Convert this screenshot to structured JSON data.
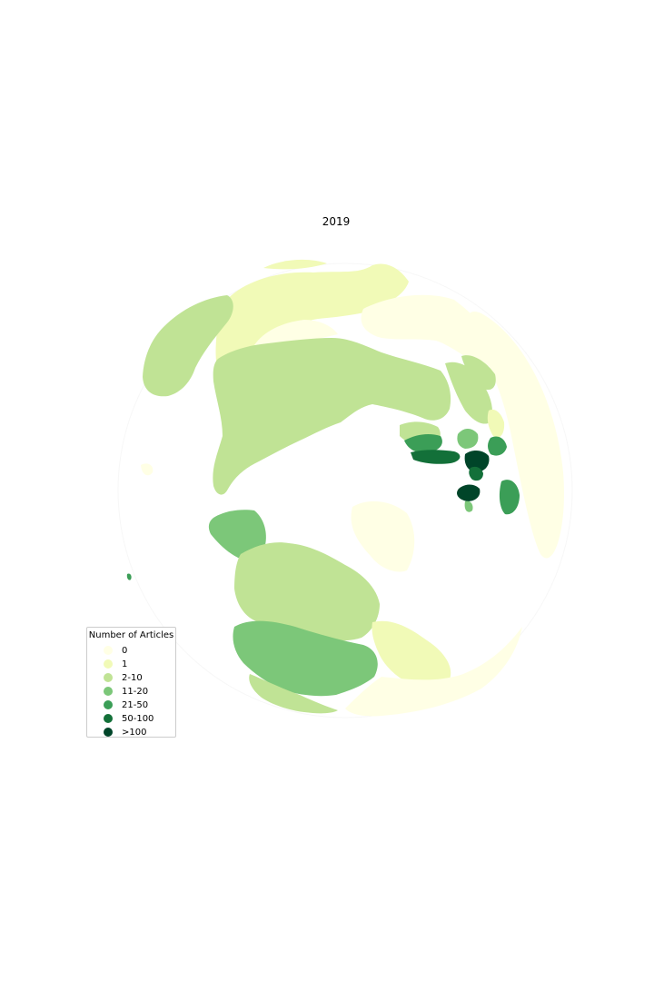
{
  "chart_data": {
    "type": "choropleth",
    "title": "2019",
    "projection": "orthographic (north-polar view)",
    "legend": {
      "title": "Number of Articles",
      "placement": "lower-left",
      "items": [
        {
          "label": "0",
          "color": "#ffffe5"
        },
        {
          "label": "1",
          "color": "#f1fab7"
        },
        {
          "label": "2-10",
          "color": "#c0e395"
        },
        {
          "label": "11-20",
          "color": "#7cc779"
        },
        {
          "label": "21-50",
          "color": "#3b9e57"
        },
        {
          "label": "50-100",
          "color": "#137039"
        },
        {
          "label": ">100",
          "color": "#004529"
        }
      ]
    }
  }
}
